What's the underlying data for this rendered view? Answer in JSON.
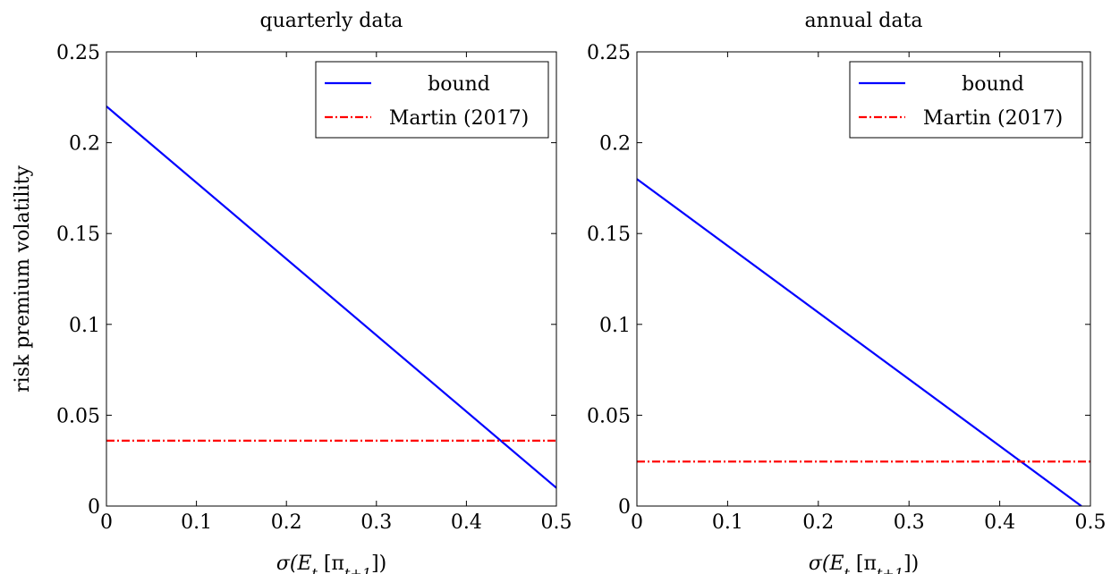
{
  "chart_data": [
    {
      "type": "line",
      "title": "quarterly data",
      "xlabel": "σ(E_t [π_{t+1}])",
      "ylabel": "risk premium volatility",
      "xlim": [
        0,
        0.5
      ],
      "ylim": [
        0,
        0.25
      ],
      "xticks": [
        "0",
        "0.1",
        "0.2",
        "0.3",
        "0.4",
        "0.5"
      ],
      "yticks": [
        "0",
        "0.05",
        "0.1",
        "0.15",
        "0.2",
        "0.25"
      ],
      "grid": false,
      "legend": "top-right",
      "series": [
        {
          "name": "bound",
          "color": "#0000ff",
          "style": "solid",
          "x": [
            0,
            0.5
          ],
          "y": [
            0.22,
            0.01
          ]
        },
        {
          "name": "Martin (2017)",
          "color": "#ff0000",
          "style": "dash-dot",
          "x": [
            0,
            0.5
          ],
          "y": [
            0.036,
            0.036
          ]
        }
      ]
    },
    {
      "type": "line",
      "title": "annual data",
      "xlabel": "σ(E_t [π_{t+1}])",
      "ylabel": "",
      "xlim": [
        0,
        0.5
      ],
      "ylim": [
        0,
        0.25
      ],
      "xticks": [
        "0",
        "0.1",
        "0.2",
        "0.3",
        "0.4",
        "0.5"
      ],
      "yticks": [
        "0",
        "0.05",
        "0.1",
        "0.15",
        "0.2",
        "0.25"
      ],
      "grid": false,
      "legend": "top-right",
      "series": [
        {
          "name": "bound",
          "color": "#0000ff",
          "style": "solid",
          "x": [
            0,
            0.49
          ],
          "y": [
            0.18,
            0
          ]
        },
        {
          "name": "Martin (2017)",
          "color": "#ff0000",
          "style": "dash-dot",
          "x": [
            0,
            0.5
          ],
          "y": [
            0.0245,
            0.0245
          ]
        }
      ]
    }
  ]
}
